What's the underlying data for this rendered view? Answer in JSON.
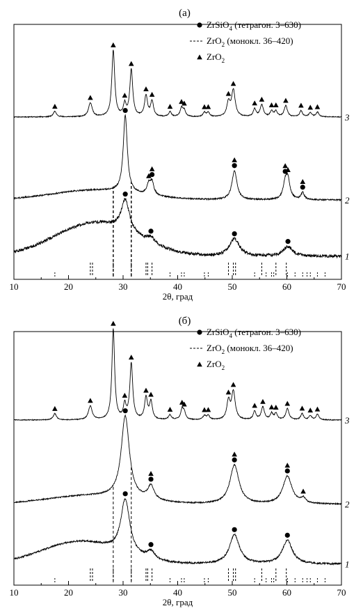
{
  "chart_data": [
    {
      "type": "line",
      "panel_label": "(а)",
      "xlabel": "2θ, град",
      "ylabel": "",
      "xlim": [
        10,
        70
      ],
      "xticks": [
        10,
        20,
        30,
        40,
        50,
        60,
        70
      ],
      "grid": false,
      "legend_position": "top-right",
      "legend": [
        {
          "marker": "circle",
          "label": "ZrSiO",
          "sub": "4",
          "suffix": " (тетрагон. 3–630)"
        },
        {
          "marker": "dashed",
          "label": "ZrO",
          "sub": "2",
          "suffix": " (монокл. 36–420)"
        },
        {
          "marker": "triangle",
          "label": "ZrO",
          "sub": "2",
          "suffix": ""
        }
      ],
      "reference_dashed_2theta": [
        28.2,
        31.5
      ],
      "sticks_primary": [
        24.0,
        24.4,
        28.2,
        31.5,
        34.2,
        34.5,
        35.3,
        49.3,
        50.2,
        50.6,
        55.4,
        58.0,
        59.9
      ],
      "sticks_secondary": [
        17.5,
        38.6,
        40.7,
        41.2,
        44.9,
        45.6,
        54.1,
        56.2,
        57.2,
        57.6,
        60.1,
        61.5,
        62.9,
        63.7,
        64.3,
        65.6,
        67.0
      ],
      "series": [
        {
          "name": "3",
          "baseline": 168,
          "noise": 0.6,
          "hump": null,
          "peaks": [
            [
              17.5,
              8,
              0.35
            ],
            [
              24.0,
              20,
              0.4
            ],
            [
              28.2,
              95,
              0.32
            ],
            [
              30.3,
              17,
              0.3
            ],
            [
              31.5,
              67,
              0.32
            ],
            [
              34.2,
              30,
              0.32
            ],
            [
              35.3,
              22,
              0.32
            ],
            [
              38.6,
              7,
              0.3
            ],
            [
              40.7,
              12,
              0.3
            ],
            [
              41.2,
              9,
              0.3
            ],
            [
              44.9,
              6,
              0.3
            ],
            [
              45.6,
              6,
              0.3
            ],
            [
              49.3,
              20,
              0.35
            ],
            [
              50.2,
              38,
              0.4
            ],
            [
              54.1,
              11,
              0.3
            ],
            [
              55.4,
              17,
              0.35
            ],
            [
              57.2,
              8,
              0.3
            ],
            [
              58.0,
              8,
              0.3
            ],
            [
              59.8,
              16,
              0.35
            ],
            [
              62.6,
              9,
              0.3
            ],
            [
              64.3,
              6,
              0.3
            ],
            [
              65.6,
              7,
              0.3
            ]
          ],
          "markers": [
            {
              "x": 17.5,
              "types": [
                "triangle"
              ]
            },
            {
              "x": 24.0,
              "types": [
                "triangle"
              ]
            },
            {
              "x": 28.2,
              "types": [
                "triangle"
              ]
            },
            {
              "x": 30.3,
              "types": [
                "triangle"
              ]
            },
            {
              "x": 31.5,
              "types": [
                "triangle"
              ]
            },
            {
              "x": 34.2,
              "types": [
                "triangle"
              ]
            },
            {
              "x": 35.3,
              "types": [
                "triangle"
              ]
            },
            {
              "x": 38.6,
              "types": [
                "triangle"
              ]
            },
            {
              "x": 40.7,
              "types": [
                "triangle"
              ]
            },
            {
              "x": 41.2,
              "types": [
                "triangle"
              ]
            },
            {
              "x": 44.9,
              "types": [
                "triangle"
              ]
            },
            {
              "x": 45.6,
              "types": [
                "triangle"
              ]
            },
            {
              "x": 49.3,
              "types": [
                "triangle"
              ]
            },
            {
              "x": 50.2,
              "types": [
                "triangle"
              ]
            },
            {
              "x": 54.1,
              "types": [
                "triangle"
              ]
            },
            {
              "x": 55.4,
              "types": [
                "triangle"
              ]
            },
            {
              "x": 57.2,
              "types": [
                "triangle"
              ]
            },
            {
              "x": 58.0,
              "types": [
                "triangle"
              ]
            },
            {
              "x": 59.8,
              "types": [
                "triangle"
              ]
            },
            {
              "x": 62.6,
              "types": [
                "triangle"
              ]
            },
            {
              "x": 64.3,
              "types": [
                "triangle"
              ]
            },
            {
              "x": 65.6,
              "types": [
                "triangle"
              ]
            }
          ]
        },
        {
          "name": "2",
          "baseline": 287,
          "noise": 1.0,
          "hump": [
            25,
            14,
            8
          ],
          "peaks": [
            [
              30.4,
              110,
              0.45
            ],
            [
              34.7,
              14,
              0.4
            ],
            [
              35.3,
              18,
              0.4
            ],
            [
              50.4,
              42,
              0.55
            ],
            [
              59.7,
              22,
              0.45
            ],
            [
              60.2,
              26,
              0.45
            ],
            [
              62.9,
              10,
              0.35
            ]
          ],
          "markers": [
            {
              "x": 30.4,
              "types": [
                "circle"
              ]
            },
            {
              "x": 34.7,
              "types": [
                "triangle"
              ]
            },
            {
              "x": 35.3,
              "types": [
                "circle",
                "triangle"
              ]
            },
            {
              "x": 50.4,
              "types": [
                "circle",
                "triangle"
              ]
            },
            {
              "x": 59.7,
              "types": [
                "circle",
                "triangle"
              ]
            },
            {
              "x": 60.2,
              "types": [
                "triangle"
              ]
            },
            {
              "x": 62.9,
              "types": [
                "circle",
                "triangle"
              ]
            }
          ]
        },
        {
          "name": "1",
          "baseline": 368,
          "noise": 2.2,
          "hump": [
            25,
            48,
            7.5
          ],
          "peaks": [
            [
              30.4,
              45,
              0.9
            ],
            [
              35.1,
              8,
              0.8
            ],
            [
              50.4,
              25,
              1.1
            ],
            [
              60.2,
              14,
              1.0
            ]
          ],
          "markers": [
            {
              "x": 30.4,
              "types": [
                "circle"
              ]
            },
            {
              "x": 35.1,
              "types": [
                "circle"
              ]
            },
            {
              "x": 50.4,
              "types": [
                "circle"
              ]
            },
            {
              "x": 60.2,
              "types": [
                "circle"
              ]
            }
          ]
        }
      ]
    },
    {
      "type": "line",
      "panel_label": "(б)",
      "xlabel": "2θ, град",
      "ylabel": "",
      "xlim": [
        10,
        70
      ],
      "xticks": [
        10,
        20,
        30,
        40,
        50,
        60,
        70
      ],
      "grid": false,
      "legend_position": "top-right",
      "legend": [
        {
          "marker": "circle",
          "label": "ZrSiO",
          "sub": "4",
          "suffix": " (тетрагон. 3–630)"
        },
        {
          "marker": "dashed",
          "label": "ZrO",
          "sub": "2",
          "suffix": " (монокл. 36–420)"
        },
        {
          "marker": "triangle",
          "label": "ZrO",
          "sub": "2",
          "suffix": ""
        }
      ],
      "reference_dashed_2theta": [
        28.2,
        31.5
      ],
      "sticks_primary": [
        24.0,
        24.4,
        28.2,
        31.5,
        34.2,
        34.5,
        35.3,
        49.3,
        50.2,
        50.6,
        55.4,
        58.0,
        59.9
      ],
      "sticks_secondary": [
        17.5,
        38.6,
        40.7,
        41.2,
        44.9,
        45.6,
        54.1,
        56.2,
        57.2,
        57.6,
        60.1,
        61.5,
        62.9,
        63.7,
        64.3,
        65.6,
        67.0
      ],
      "series": [
        {
          "name": "3",
          "baseline": 603,
          "noise": 0.6,
          "hump": null,
          "peaks": [
            [
              17.5,
              9,
              0.35
            ],
            [
              24.0,
              20,
              0.4
            ],
            [
              28.2,
              130,
              0.3
            ],
            [
              30.3,
              20,
              0.3
            ],
            [
              31.5,
              80,
              0.32
            ],
            [
              34.2,
              31,
              0.32
            ],
            [
              35.1,
              25,
              0.32
            ],
            [
              38.6,
              7,
              0.3
            ],
            [
              40.8,
              14,
              0.3
            ],
            [
              41.2,
              10,
              0.3
            ],
            [
              44.9,
              6,
              0.3
            ],
            [
              45.6,
              6,
              0.3
            ],
            [
              49.3,
              26,
              0.35
            ],
            [
              50.2,
              40,
              0.4
            ],
            [
              54.1,
              12,
              0.3
            ],
            [
              55.6,
              18,
              0.35
            ],
            [
              57.2,
              9,
              0.3
            ],
            [
              58.0,
              9,
              0.3
            ],
            [
              60.1,
              16,
              0.35
            ],
            [
              62.8,
              9,
              0.3
            ],
            [
              64.3,
              6,
              0.3
            ],
            [
              65.6,
              8,
              0.3
            ]
          ],
          "markers": [
            {
              "x": 17.5,
              "types": [
                "triangle"
              ]
            },
            {
              "x": 24.0,
              "types": [
                "triangle"
              ]
            },
            {
              "x": 28.2,
              "types": [
                "triangle"
              ]
            },
            {
              "x": 30.3,
              "types": [
                "triangle"
              ]
            },
            {
              "x": 31.5,
              "types": [
                "triangle"
              ]
            },
            {
              "x": 34.2,
              "types": [
                "triangle"
              ]
            },
            {
              "x": 35.1,
              "types": [
                "triangle"
              ]
            },
            {
              "x": 38.6,
              "types": [
                "triangle"
              ]
            },
            {
              "x": 40.8,
              "types": [
                "triangle"
              ]
            },
            {
              "x": 41.2,
              "types": [
                "triangle"
              ]
            },
            {
              "x": 44.9,
              "types": [
                "triangle"
              ]
            },
            {
              "x": 45.6,
              "types": [
                "triangle"
              ]
            },
            {
              "x": 49.3,
              "types": [
                "triangle"
              ]
            },
            {
              "x": 50.2,
              "types": [
                "triangle"
              ]
            },
            {
              "x": 54.1,
              "types": [
                "triangle"
              ]
            },
            {
              "x": 55.6,
              "types": [
                "triangle"
              ]
            },
            {
              "x": 57.2,
              "types": [
                "triangle"
              ]
            },
            {
              "x": 58.0,
              "types": [
                "triangle"
              ]
            },
            {
              "x": 60.1,
              "types": [
                "triangle"
              ]
            },
            {
              "x": 62.8,
              "types": [
                "triangle"
              ]
            },
            {
              "x": 64.3,
              "types": [
                "triangle"
              ]
            },
            {
              "x": 65.6,
              "types": [
                "triangle"
              ]
            }
          ]
        },
        {
          "name": "2",
          "baseline": 724,
          "noise": 0.9,
          "hump": [
            24,
            12,
            8
          ],
          "peaks": [
            [
              30.4,
              118,
              0.9
            ],
            [
              35.1,
              20,
              0.7
            ],
            [
              50.4,
              56,
              1.0
            ],
            [
              60.1,
              40,
              1.0
            ],
            [
              63.0,
              7,
              0.5
            ]
          ],
          "markers": [
            {
              "x": 30.4,
              "types": [
                "circle"
              ]
            },
            {
              "x": 35.1,
              "types": [
                "circle",
                "triangle"
              ]
            },
            {
              "x": 50.4,
              "types": [
                "circle",
                "triangle"
              ]
            },
            {
              "x": 60.1,
              "types": [
                "circle",
                "triangle"
              ]
            },
            {
              "x": 63.0,
              "types": [
                "triangle"
              ]
            }
          ]
        },
        {
          "name": "1",
          "baseline": 810,
          "noise": 1.3,
          "hump": [
            22,
            32,
            7
          ],
          "peaks": [
            [
              30.4,
              78,
              1.0
            ],
            [
              35.1,
              12,
              0.9
            ],
            [
              50.4,
              42,
              1.1
            ],
            [
              60.1,
              34,
              1.1
            ]
          ],
          "markers": [
            {
              "x": 30.4,
              "types": [
                "circle"
              ]
            },
            {
              "x": 35.1,
              "types": [
                "circle"
              ]
            },
            {
              "x": 50.4,
              "types": [
                "circle"
              ]
            },
            {
              "x": 60.1,
              "types": [
                "circle"
              ]
            }
          ]
        }
      ]
    }
  ]
}
